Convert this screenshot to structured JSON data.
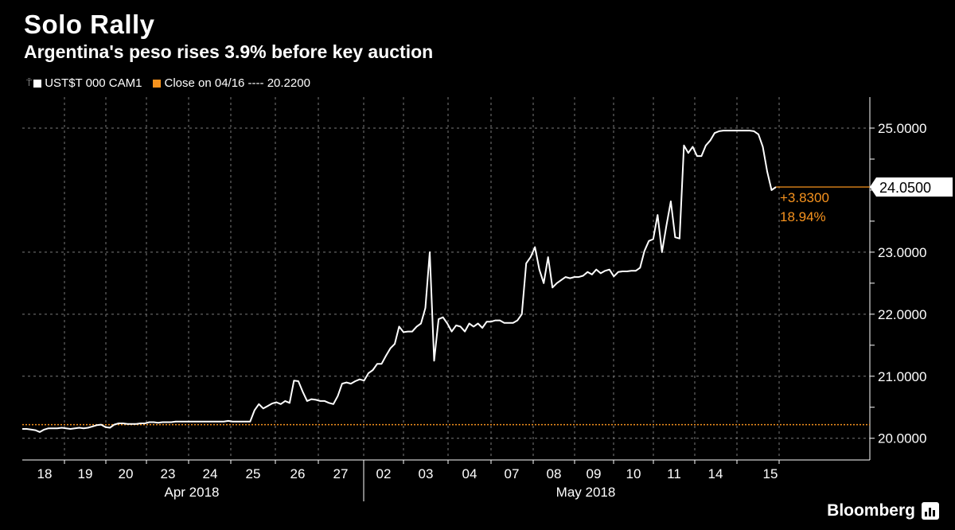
{
  "header": {
    "title": "Solo Rally",
    "subtitle": "Argentina's peso rises 3.9% before key auction"
  },
  "legend": {
    "series_label": "UST$T 000 CAM1",
    "reference_label": "Close on 04/16 ---- 20.2200"
  },
  "annotation": {
    "last_value": "24.0500",
    "change": "+3.8300",
    "change_pct": "18.94%"
  },
  "branding": {
    "name": "Bloomberg"
  },
  "colors": {
    "background": "#000000",
    "line": "#ffffff",
    "reference": "#f7931e",
    "grid": "#7a7a7a"
  },
  "chart_data": {
    "type": "line",
    "ylim": [
      19.65,
      25.5
    ],
    "reference_value": 20.22,
    "yticks": [
      {
        "value": 20,
        "label": "20.0000"
      },
      {
        "value": 21,
        "label": "21.0000"
      },
      {
        "value": 22,
        "label": "22.0000"
      },
      {
        "value": 23,
        "label": "23.0000"
      },
      {
        "value": 25,
        "label": "25.0000"
      }
    ],
    "grid": true,
    "day_labels": [
      "18",
      "19",
      "20",
      "23",
      "24",
      "25",
      "26",
      "27",
      "02",
      "03",
      "04",
      "07",
      "08",
      "09",
      "10",
      "11",
      "14",
      "15"
    ],
    "month_labels": [
      "Apr 2018",
      "May 2018"
    ],
    "series": [
      {
        "name": "UST$T 000 CAM1",
        "values": [
          20.15,
          20.15,
          20.14,
          20.13,
          20.1,
          20.14,
          20.16,
          20.16,
          20.16,
          20.17,
          20.16,
          20.15,
          20.16,
          20.17,
          20.16,
          20.17,
          20.19,
          20.21,
          20.22,
          20.18,
          20.17,
          20.22,
          20.24,
          20.24,
          20.23,
          20.23,
          20.23,
          20.24,
          20.24,
          20.26,
          20.26,
          20.25,
          20.26,
          20.26,
          20.26,
          20.27,
          20.27,
          20.27,
          20.27,
          20.27,
          20.27,
          20.27,
          20.27,
          20.27,
          20.27,
          20.27,
          20.27,
          20.28,
          20.27,
          20.27,
          20.27,
          20.27,
          20.27,
          20.45,
          20.55,
          20.48,
          20.52,
          20.56,
          20.58,
          20.55,
          20.6,
          20.57,
          20.93,
          20.92,
          20.75,
          20.6,
          20.63,
          20.62,
          20.6,
          20.6,
          20.57,
          20.55,
          20.68,
          20.88,
          20.9,
          20.88,
          20.92,
          20.95,
          20.93,
          21.05,
          21.1,
          21.2,
          21.2,
          21.33,
          21.45,
          21.52,
          21.8,
          21.71,
          21.72,
          21.72,
          21.8,
          21.85,
          22.1,
          23.0,
          21.25,
          21.92,
          21.95,
          21.85,
          21.72,
          21.82,
          21.8,
          21.72,
          21.85,
          21.8,
          21.85,
          21.78,
          21.88,
          21.88,
          21.9,
          21.9,
          21.86,
          21.86,
          21.86,
          21.9,
          22.0,
          22.82,
          22.92,
          23.08,
          22.72,
          22.5,
          22.92,
          22.43,
          22.5,
          22.55,
          22.6,
          22.58,
          22.6,
          22.6,
          22.62,
          22.68,
          22.64,
          22.72,
          22.66,
          22.7,
          22.72,
          22.61,
          22.68,
          22.69,
          22.69,
          22.7,
          22.7,
          22.75,
          23.02,
          23.18,
          23.21,
          23.6,
          23.0,
          23.43,
          23.82,
          23.24,
          23.22,
          24.72,
          24.6,
          24.7,
          24.55,
          24.55,
          24.72,
          24.8,
          24.92,
          24.95,
          24.96,
          24.96,
          24.96,
          24.96,
          24.96,
          24.96,
          24.96,
          24.95,
          24.9,
          24.7,
          24.3,
          24.0,
          24.05
        ]
      }
    ]
  }
}
